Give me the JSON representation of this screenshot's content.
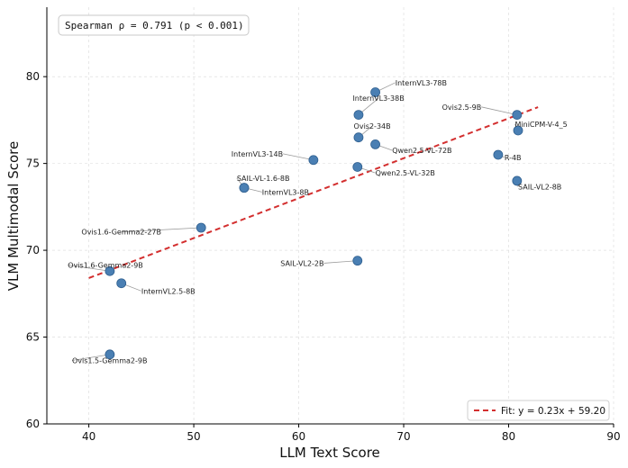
{
  "chart_data": {
    "type": "scatter",
    "xlabel": "LLM Text Score",
    "ylabel": "VLM Multimodal Score",
    "xlim": [
      36,
      90
    ],
    "ylim": [
      60,
      84
    ],
    "xticks": [
      40,
      50,
      60,
      70,
      80,
      90
    ],
    "yticks": [
      60,
      65,
      70,
      75,
      80
    ],
    "grid": true,
    "annotation": "Spearman  ρ = 0.791  (p < 0.001)",
    "fit": {
      "label": "Fit: y = 0.23x + 59.20",
      "slope": 0.23,
      "intercept": 59.2,
      "x_range": [
        40,
        82.8
      ],
      "color": "#d32f2f"
    },
    "legend_position": "bottom-right",
    "marker_color": "#4a7fb3",
    "points": [
      {
        "name": "InternVL3-78B",
        "x": 67.3,
        "y": 79.1,
        "lx": 69.2,
        "ly": 79.5,
        "anchor": "start"
      },
      {
        "name": "InternVL3-38B",
        "x": 65.7,
        "y": 77.8,
        "lx": 67.6,
        "ly": 78.6,
        "anchor": "middle"
      },
      {
        "name": "Ovis2.5-9B",
        "x": 80.8,
        "y": 77.8,
        "lx": 77.4,
        "ly": 78.1,
        "anchor": "end"
      },
      {
        "name": "MiniCPM-V-4_5",
        "x": 80.9,
        "y": 76.9,
        "lx": 80.6,
        "ly": 77.1,
        "anchor": "start"
      },
      {
        "name": "Ovis2-34B",
        "x": 65.7,
        "y": 76.5,
        "lx": 67.0,
        "ly": 77.0,
        "anchor": "middle"
      },
      {
        "name": "Qwen2.5-VL-72B",
        "x": 67.3,
        "y": 76.1,
        "lx": 68.9,
        "ly": 75.6,
        "anchor": "start"
      },
      {
        "name": "InternVL3-14B",
        "x": 61.4,
        "y": 75.2,
        "lx": 58.5,
        "ly": 75.4,
        "anchor": "end"
      },
      {
        "name": "R-4B",
        "x": 79.0,
        "y": 75.5,
        "lx": 79.6,
        "ly": 75.2,
        "anchor": "start"
      },
      {
        "name": "Qwen2.5-VL-32B",
        "x": 65.6,
        "y": 74.8,
        "lx": 67.3,
        "ly": 74.3,
        "anchor": "start"
      },
      {
        "name": "SAIL-VL2-8B",
        "x": 80.8,
        "y": 74.0,
        "lx": 80.9,
        "ly": 73.5,
        "anchor": "start"
      },
      {
        "name": "SAIL-VL-1.6-8B",
        "x": 54.8,
        "y": 73.6,
        "lx": 54.1,
        "ly": 74.0,
        "anchor": "start"
      },
      {
        "name": "InternVL3-8B",
        "x": 54.8,
        "y": 73.6,
        "lx": 56.5,
        "ly": 73.2,
        "anchor": "start"
      },
      {
        "name": "Ovis1.6-Gemma2-27B",
        "x": 50.7,
        "y": 71.3,
        "lx": 43.1,
        "ly": 70.9,
        "anchor": "middle"
      },
      {
        "name": "SAIL-VL2-2B",
        "x": 65.6,
        "y": 69.4,
        "lx": 62.4,
        "ly": 69.1,
        "anchor": "end"
      },
      {
        "name": "Ovis1.6-Gemma2-9B",
        "x": 42.0,
        "y": 68.8,
        "lx": 38.0,
        "ly": 69.0,
        "anchor": "start"
      },
      {
        "name": "InternVL2.5-8B",
        "x": 43.1,
        "y": 68.1,
        "lx": 45.0,
        "ly": 67.5,
        "anchor": "start"
      },
      {
        "name": "Ovis1.5-Gemma2-9B",
        "x": 42.0,
        "y": 64.0,
        "lx": 38.4,
        "ly": 63.5,
        "anchor": "start"
      }
    ]
  }
}
